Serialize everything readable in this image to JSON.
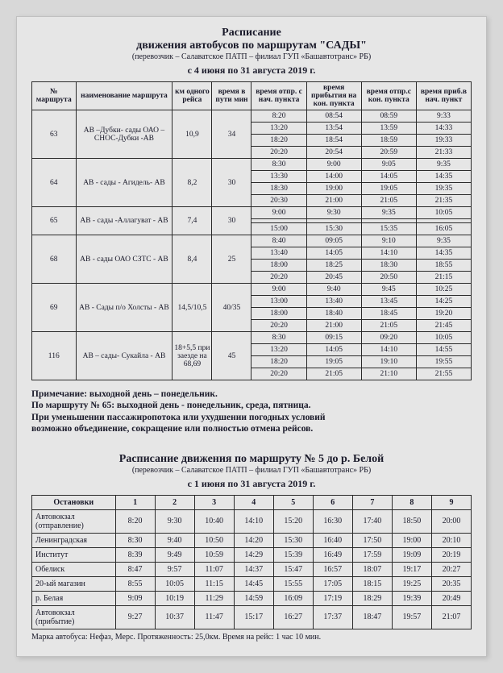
{
  "header": {
    "line1": "Расписание",
    "line2": "движения автобусов по   маршрутам   \"САДЫ\"",
    "sub": "(перевозчик – Салаватское ПАТП – филиал ГУП «Башавтотранс» РБ)",
    "period": "с 4 июня по 31 августа 2019 г."
  },
  "t1": {
    "head": [
      "№ маршрута",
      "наименование маршрута",
      "км одного рейса",
      "время в пути мин",
      "время отпр. с нач. пункта",
      "время прибытия на кон. пункта",
      "время отпр.с кон. пункта",
      "время приб.в нач. пункт"
    ],
    "rows": [
      {
        "route": "63",
        "name": "АВ –Дубки- сады ОАО –СНОС-Дубки -АВ",
        "km": "10,9",
        "t": "34",
        "times": [
          [
            "8:20",
            "08:54",
            "08:59",
            "9:33"
          ],
          [
            "13:20",
            "13:54",
            "13:59",
            "14:33"
          ],
          [
            "18:20",
            "18:54",
            "18:59",
            "19:33"
          ],
          [
            "20:20",
            "20:54",
            "20:59",
            "21:33"
          ]
        ]
      },
      {
        "route": "64",
        "name": "АВ - сады - Агидель- АВ",
        "km": "8,2",
        "t": "30",
        "times": [
          [
            "8:30",
            "9:00",
            "9:05",
            "9:35"
          ],
          [
            "13:30",
            "14:00",
            "14:05",
            "14:35"
          ],
          [
            "18:30",
            "19:00",
            "19:05",
            "19:35"
          ],
          [
            "20:30",
            "21:00",
            "21:05",
            "21:35"
          ]
        ]
      },
      {
        "route": "65",
        "name": "АВ - сады -Аллагуват - АВ",
        "km": "7,4",
        "t": "30",
        "times": [
          [
            "9:00",
            "9:30",
            "9:35",
            "10:05"
          ],
          [
            "",
            "",
            "",
            ""
          ],
          [
            "15:00",
            "15:30",
            "15:35",
            "16:05"
          ]
        ]
      },
      {
        "route": "68",
        "name": "АВ - сады ОАО СЗТС - АВ",
        "km": "8,4",
        "t": "25",
        "times": [
          [
            "8:40",
            "09:05",
            "9:10",
            "9:35"
          ],
          [
            "13:40",
            "14:05",
            "14:10",
            "14:35"
          ],
          [
            "18:00",
            "18:25",
            "18:30",
            "18:55"
          ],
          [
            "20:20",
            "20:45",
            "20:50",
            "21:15"
          ]
        ]
      },
      {
        "route": "69",
        "name": "АВ - Сады п/о Холсты - АВ",
        "km": "14,5/10,5",
        "t": "40/35",
        "times": [
          [
            "9:00",
            "9:40",
            "9:45",
            "10:25"
          ],
          [
            "13:00",
            "13:40",
            "13:45",
            "14:25"
          ],
          [
            "18:00",
            "18:40",
            "18:45",
            "19:20"
          ],
          [
            "20:20",
            "21:00",
            "21:05",
            "21:45"
          ]
        ]
      },
      {
        "route": "116",
        "name": "АВ – сады- Сукайла - АВ",
        "km": "18+5,5 при заезде на 68,69",
        "t": "45",
        "times": [
          [
            "8:30",
            "09:15",
            "09:20",
            "10:05"
          ],
          [
            "13:20",
            "14:05",
            "14:10",
            "14:55"
          ],
          [
            "18:20",
            "19:05",
            "19:10",
            "19:55"
          ],
          [
            "20:20",
            "21:05",
            "21:10",
            "21:55"
          ]
        ]
      }
    ]
  },
  "note": {
    "l1": "Примечание: выходной день – понедельник.",
    "l2": "По маршруту № 65: выходной день - понедельник, среда, пятница.",
    "l3": "При уменьшении пассажиропотока или ухудшении погодных условий",
    "l4": "возможно объединение, сокращение или полностью отмена рейсов."
  },
  "sec2": {
    "title": "Расписание движения по маршруту № 5 до р. Белой",
    "sub": "(перевозчик – Салаватское ПАТП – филиал ГУП «Башавтотранс» РБ)",
    "period": "с 1 июня по 31 августа 2019 г."
  },
  "t2": {
    "head": [
      "Остановки",
      "1",
      "2",
      "3",
      "4",
      "5",
      "6",
      "7",
      "8",
      "9"
    ],
    "rows": [
      [
        "Автовокзал (отправление)",
        "8:20",
        "9:30",
        "10:40",
        "14:10",
        "15:20",
        "16:30",
        "17:40",
        "18:50",
        "20:00"
      ],
      [
        "Ленинградская",
        "8:30",
        "9:40",
        "10:50",
        "14:20",
        "15:30",
        "16:40",
        "17:50",
        "19:00",
        "20:10"
      ],
      [
        "Институт",
        "8:39",
        "9:49",
        "10:59",
        "14:29",
        "15:39",
        "16:49",
        "17:59",
        "19:09",
        "20:19"
      ],
      [
        "Обелиск",
        "8:47",
        "9:57",
        "11:07",
        "14:37",
        "15:47",
        "16:57",
        "18:07",
        "19:17",
        "20:27"
      ],
      [
        "20-ый магазин",
        "8:55",
        "10:05",
        "11:15",
        "14:45",
        "15:55",
        "17:05",
        "18:15",
        "19:25",
        "20:35"
      ],
      [
        "р. Белая",
        "9:09",
        "10:19",
        "11:29",
        "14:59",
        "16:09",
        "17:19",
        "18:29",
        "19:39",
        "20:49"
      ],
      [
        "Автовокзал (прибытие)",
        "9:27",
        "10:37",
        "11:47",
        "15:17",
        "16:27",
        "17:37",
        "18:47",
        "19:57",
        "21:07"
      ]
    ]
  },
  "footer": "Марка автобуса:  Нефаз, Мерс.    Протяженность: 25,0км.   Время на рейс:   1 час 10 мин."
}
